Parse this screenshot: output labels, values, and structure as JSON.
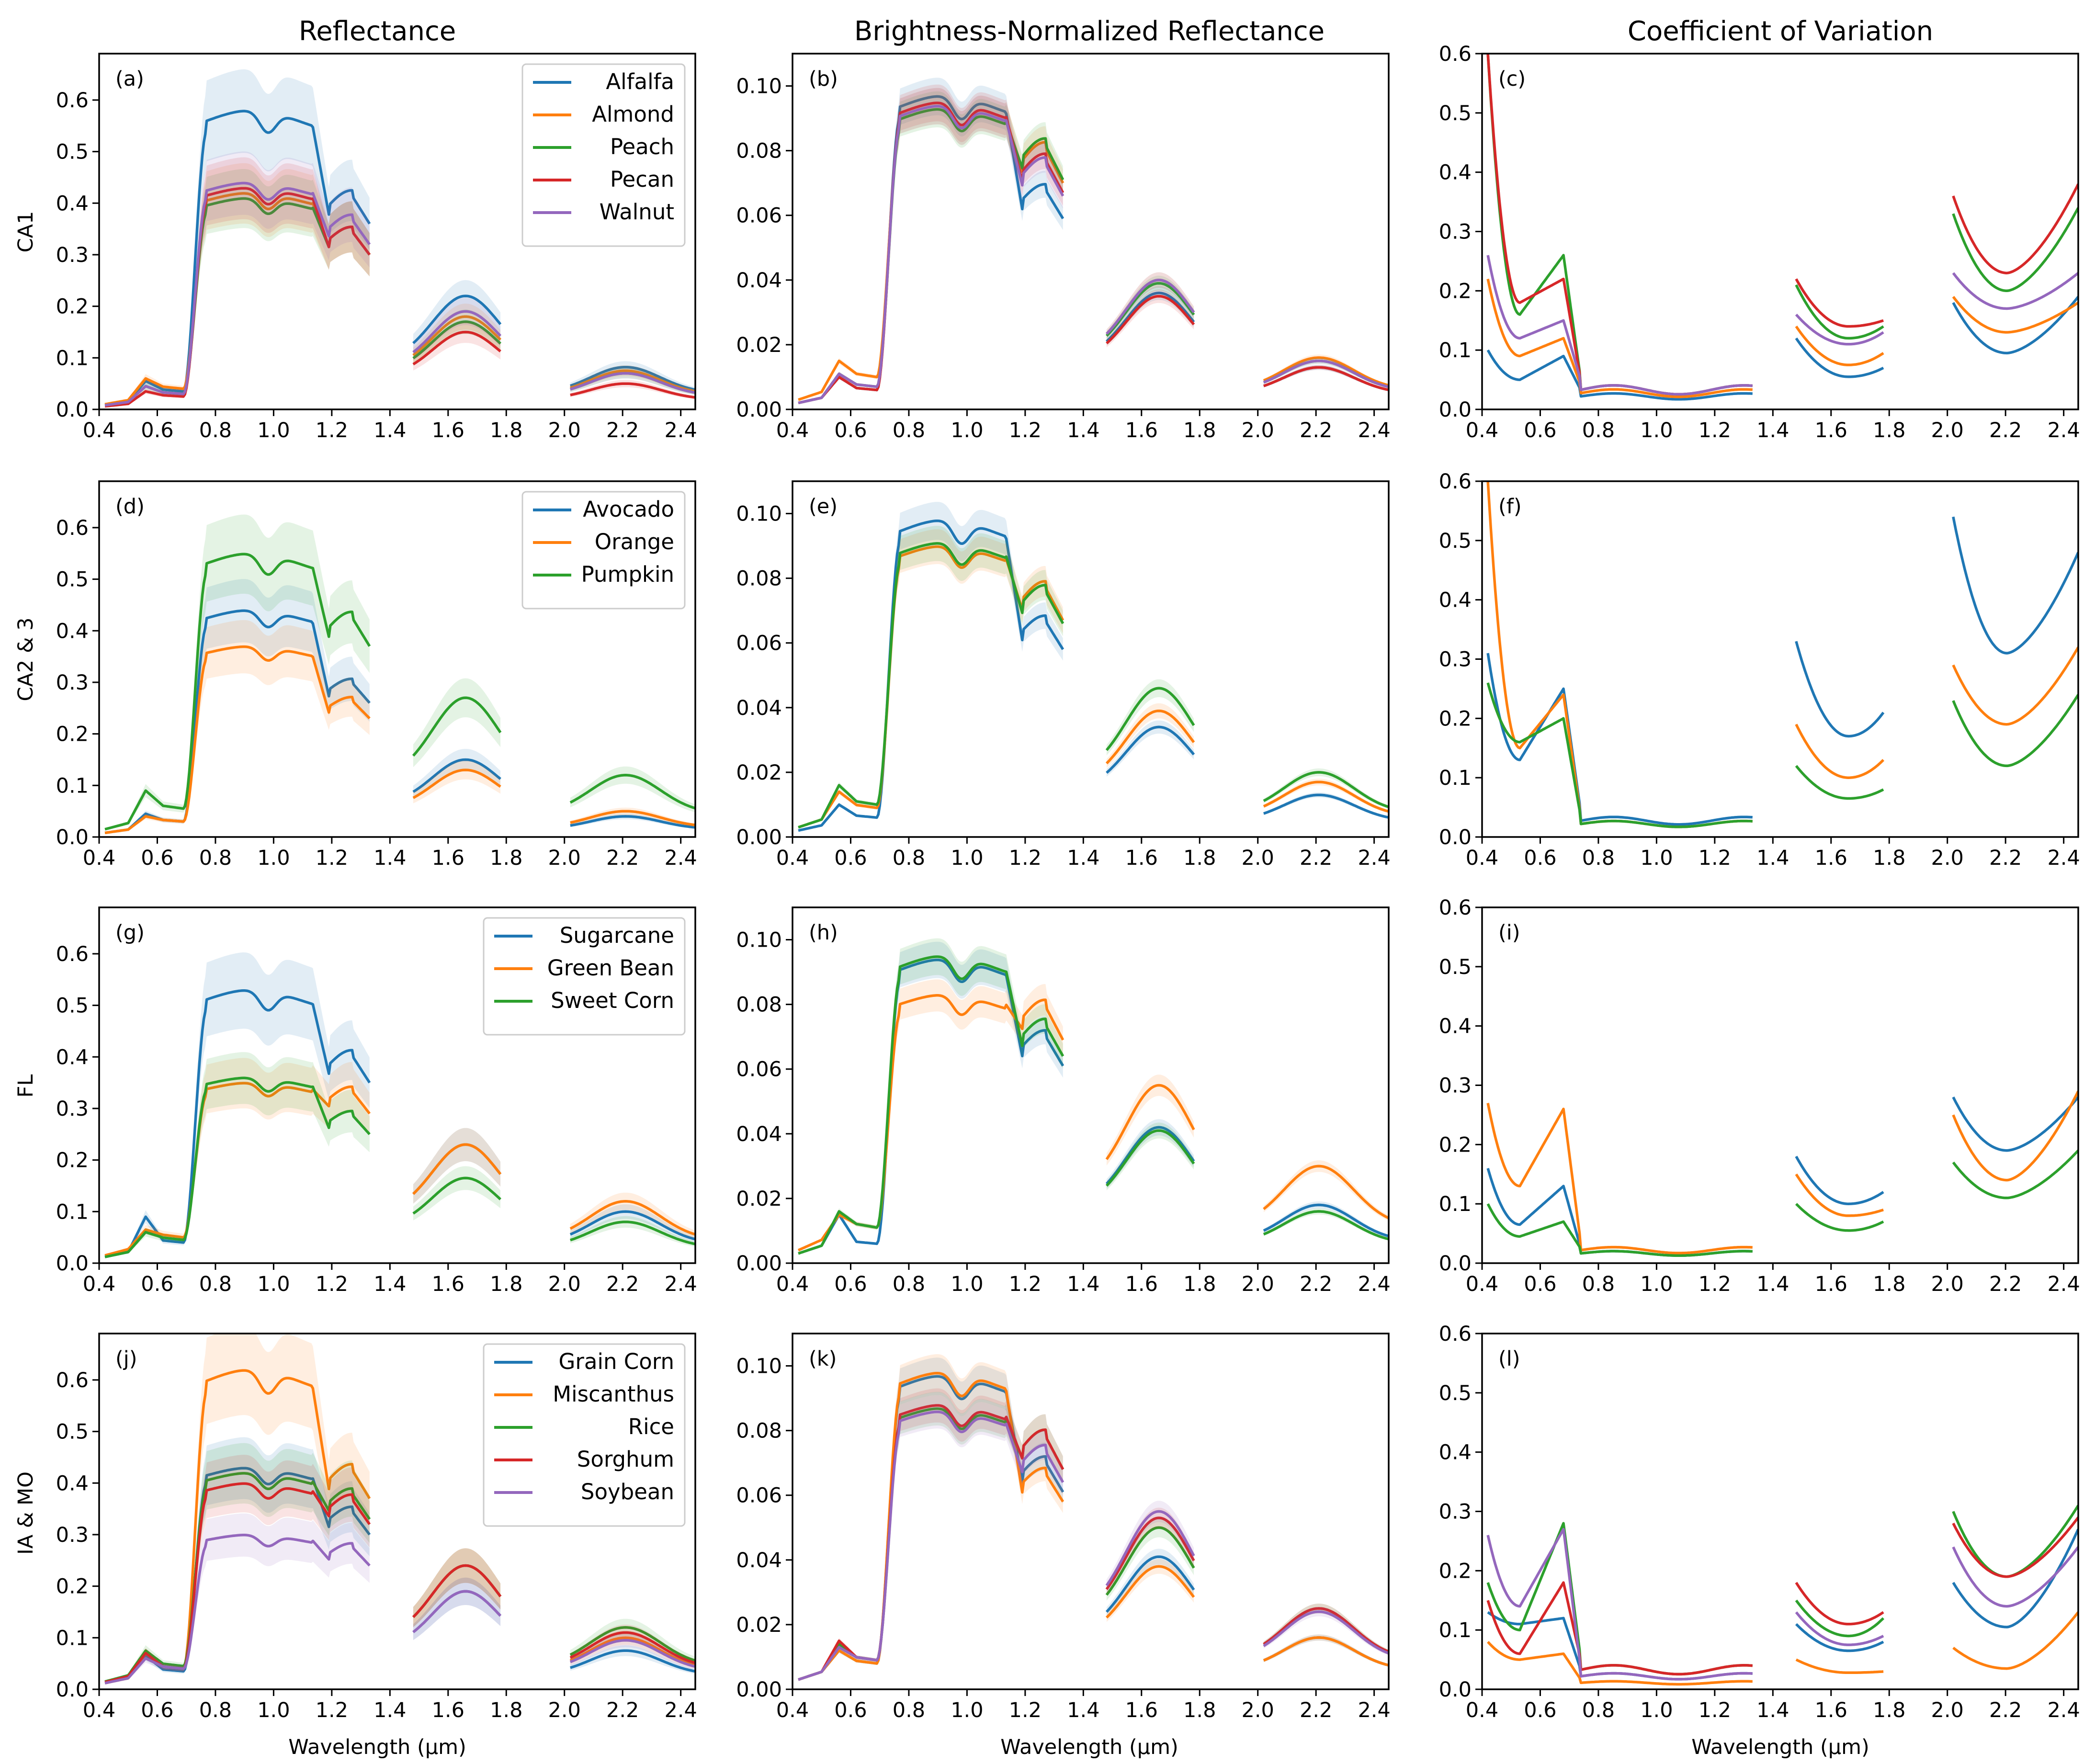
{
  "figure": {
    "column_titles": [
      "Reflectance",
      "Brightness-Normalized Reflectance",
      "Coefficient of Variation"
    ],
    "row_labels": [
      "CA1",
      "CA2 & 3",
      "FL",
      "IA & MO"
    ],
    "x_axis_label": "Wavelength (µm)"
  },
  "colors": {
    "C0": "#1f77b4",
    "C1": "#ff7f0e",
    "C2": "#2ca02c",
    "C3": "#d62728",
    "C4": "#9467bd"
  },
  "chart_data": [
    {
      "panel": "(a)",
      "type": "line",
      "ylim": [
        0,
        0.69
      ],
      "yticks": [
        0.0,
        0.1,
        0.2,
        0.3,
        0.4,
        0.5,
        0.6
      ],
      "xlim": [
        0.4,
        2.45
      ],
      "xticks": [
        0.4,
        0.6,
        0.8,
        1.0,
        1.2,
        1.4,
        1.6,
        1.8,
        2.0,
        2.2,
        2.4
      ],
      "legend": "top-right",
      "shaded_band": true,
      "series": [
        {
          "name": "Alfalfa",
          "visible": 0.009,
          "green": 0.055,
          "red": 0.035,
          "nir": 0.58,
          "nir_end": 0.36,
          "swir1": 0.22,
          "swir2": 0.082
        },
        {
          "name": "Almond",
          "visible": 0.01,
          "green": 0.06,
          "red": 0.04,
          "nir": 0.42,
          "nir_end": 0.3,
          "swir1": 0.18,
          "swir2": 0.075
        },
        {
          "name": "Peach",
          "visible": 0.008,
          "green": 0.045,
          "red": 0.03,
          "nir": 0.41,
          "nir_end": 0.3,
          "swir1": 0.17,
          "swir2": 0.07
        },
        {
          "name": "Pecan",
          "visible": 0.006,
          "green": 0.035,
          "red": 0.025,
          "nir": 0.43,
          "nir_end": 0.3,
          "swir1": 0.15,
          "swir2": 0.05
        },
        {
          "name": "Walnut",
          "visible": 0.008,
          "green": 0.045,
          "red": 0.03,
          "nir": 0.44,
          "nir_end": 0.32,
          "swir1": 0.19,
          "swir2": 0.07
        }
      ]
    },
    {
      "panel": "(b)",
      "type": "line",
      "ylim": [
        0,
        0.11
      ],
      "yticks": [
        0.0,
        0.02,
        0.04,
        0.06,
        0.08,
        0.1
      ],
      "xlim": [
        0.4,
        2.45
      ],
      "xticks": [
        0.4,
        0.6,
        0.8,
        1.0,
        1.2,
        1.4,
        1.6,
        1.8,
        2.0,
        2.2,
        2.4
      ],
      "shaded_band": true,
      "series": [
        {
          "name": "Alfalfa",
          "visible": 0.002,
          "green": 0.01,
          "red": 0.006,
          "nir": 0.097,
          "nir_end": 0.059,
          "swir1": 0.036,
          "swir2": 0.013
        },
        {
          "name": "Almond",
          "visible": 0.003,
          "green": 0.015,
          "red": 0.01,
          "nir": 0.094,
          "nir_end": 0.07,
          "swir1": 0.04,
          "swir2": 0.016
        },
        {
          "name": "Peach",
          "visible": 0.002,
          "green": 0.011,
          "red": 0.007,
          "nir": 0.093,
          "nir_end": 0.071,
          "swir1": 0.039,
          "swir2": 0.015
        },
        {
          "name": "Pecan",
          "visible": 0.002,
          "green": 0.01,
          "red": 0.006,
          "nir": 0.095,
          "nir_end": 0.067,
          "swir1": 0.035,
          "swir2": 0.013
        },
        {
          "name": "Walnut",
          "visible": 0.002,
          "green": 0.011,
          "red": 0.007,
          "nir": 0.094,
          "nir_end": 0.066,
          "swir1": 0.04,
          "swir2": 0.015
        }
      ]
    },
    {
      "panel": "(c)",
      "type": "line",
      "ylim": [
        0,
        0.6
      ],
      "yticks": [
        0.0,
        0.1,
        0.2,
        0.3,
        0.4,
        0.5,
        0.6
      ],
      "xlim": [
        0.4,
        2.45
      ],
      "xticks": [
        0.4,
        0.6,
        0.8,
        1.0,
        1.2,
        1.4,
        1.6,
        1.8,
        2.0,
        2.2,
        2.4
      ],
      "series": [
        {
          "name": "Alfalfa",
          "start": 0.1,
          "trough": 0.05,
          "red_peak": 0.09,
          "flat": 0.02,
          "s1": [
            0.12,
            0.055,
            0.07
          ],
          "s2": [
            0.18,
            0.095,
            0.19
          ]
        },
        {
          "name": "Almond",
          "start": 0.22,
          "trough": 0.09,
          "red_peak": 0.12,
          "flat": 0.025,
          "s1": [
            0.14,
            0.075,
            0.095
          ],
          "s2": [
            0.19,
            0.13,
            0.18
          ]
        },
        {
          "name": "Peach",
          "start": 0.6,
          "trough": 0.16,
          "red_peak": 0.26,
          "flat": 0.03,
          "s1": [
            0.21,
            0.12,
            0.14
          ],
          "s2": [
            0.33,
            0.2,
            0.34
          ]
        },
        {
          "name": "Pecan",
          "start": 0.6,
          "trough": 0.18,
          "red_peak": 0.22,
          "flat": 0.03,
          "s1": [
            0.22,
            0.14,
            0.15
          ],
          "s2": [
            0.36,
            0.23,
            0.38
          ]
        },
        {
          "name": "Walnut",
          "start": 0.26,
          "trough": 0.12,
          "red_peak": 0.15,
          "flat": 0.03,
          "s1": [
            0.16,
            0.11,
            0.13
          ],
          "s2": [
            0.23,
            0.17,
            0.23
          ]
        }
      ]
    },
    {
      "panel": "(d)",
      "type": "line",
      "ylim": [
        0,
        0.69
      ],
      "yticks": [
        0.0,
        0.1,
        0.2,
        0.3,
        0.4,
        0.5,
        0.6
      ],
      "xlim": [
        0.4,
        2.45
      ],
      "xticks": [
        0.4,
        0.6,
        0.8,
        1.0,
        1.2,
        1.4,
        1.6,
        1.8,
        2.0,
        2.2,
        2.4
      ],
      "legend": "top-right",
      "shaded_band": true,
      "series": [
        {
          "name": "Avocado",
          "visible": 0.008,
          "green": 0.045,
          "red": 0.03,
          "nir": 0.44,
          "nir_end": 0.26,
          "swir1": 0.15,
          "swir2": 0.04
        },
        {
          "name": "Orange",
          "visible": 0.008,
          "green": 0.04,
          "red": 0.03,
          "nir": 0.37,
          "nir_end": 0.23,
          "swir1": 0.13,
          "swir2": 0.05
        },
        {
          "name": "Pumpkin",
          "visible": 0.015,
          "green": 0.09,
          "red": 0.055,
          "nir": 0.55,
          "nir_end": 0.37,
          "swir1": 0.27,
          "swir2": 0.12
        }
      ]
    },
    {
      "panel": "(e)",
      "type": "line",
      "ylim": [
        0,
        0.11
      ],
      "yticks": [
        0.0,
        0.02,
        0.04,
        0.06,
        0.08,
        0.1
      ],
      "xlim": [
        0.4,
        2.45
      ],
      "xticks": [
        0.4,
        0.6,
        0.8,
        1.0,
        1.2,
        1.4,
        1.6,
        1.8,
        2.0,
        2.2,
        2.4
      ],
      "shaded_band": true,
      "series": [
        {
          "name": "Avocado",
          "visible": 0.002,
          "green": 0.01,
          "red": 0.006,
          "nir": 0.098,
          "nir_end": 0.058,
          "swir1": 0.034,
          "swir2": 0.013
        },
        {
          "name": "Orange",
          "visible": 0.003,
          "green": 0.014,
          "red": 0.009,
          "nir": 0.09,
          "nir_end": 0.067,
          "swir1": 0.039,
          "swir2": 0.017
        },
        {
          "name": "Pumpkin",
          "visible": 0.003,
          "green": 0.016,
          "red": 0.01,
          "nir": 0.091,
          "nir_end": 0.066,
          "swir1": 0.046,
          "swir2": 0.02
        }
      ]
    },
    {
      "panel": "(f)",
      "type": "line",
      "ylim": [
        0,
        0.6
      ],
      "yticks": [
        0.0,
        0.1,
        0.2,
        0.3,
        0.4,
        0.5,
        0.6
      ],
      "xlim": [
        0.4,
        2.45
      ],
      "xticks": [
        0.4,
        0.6,
        0.8,
        1.0,
        1.2,
        1.4,
        1.6,
        1.8,
        2.0,
        2.2,
        2.4
      ],
      "series": [
        {
          "name": "Avocado",
          "start": 0.31,
          "trough": 0.13,
          "red_peak": 0.25,
          "flat": 0.025,
          "s1": [
            0.33,
            0.17,
            0.21
          ],
          "s2": [
            0.54,
            0.31,
            0.48
          ]
        },
        {
          "name": "Orange",
          "start": 0.6,
          "trough": 0.15,
          "red_peak": 0.24,
          "flat": 0.02,
          "s1": [
            0.19,
            0.1,
            0.13
          ],
          "s2": [
            0.29,
            0.19,
            0.32
          ]
        },
        {
          "name": "Pumpkin",
          "start": 0.26,
          "trough": 0.16,
          "red_peak": 0.2,
          "flat": 0.02,
          "s1": [
            0.12,
            0.065,
            0.08
          ],
          "s2": [
            0.23,
            0.12,
            0.24
          ]
        }
      ]
    },
    {
      "panel": "(g)",
      "type": "line",
      "ylim": [
        0,
        0.69
      ],
      "yticks": [
        0.0,
        0.1,
        0.2,
        0.3,
        0.4,
        0.5,
        0.6
      ],
      "xlim": [
        0.4,
        2.45
      ],
      "xticks": [
        0.4,
        0.6,
        0.8,
        1.0,
        1.2,
        1.4,
        1.6,
        1.8,
        2.0,
        2.2,
        2.4
      ],
      "legend": "top-right",
      "shaded_band": true,
      "series": [
        {
          "name": "Sugarcane",
          "visible": 0.012,
          "green": 0.09,
          "red": 0.04,
          "nir": 0.53,
          "nir_end": 0.35,
          "swir1": 0.23,
          "swir2": 0.1
        },
        {
          "name": "Green Bean",
          "visible": 0.015,
          "green": 0.065,
          "red": 0.05,
          "nir": 0.35,
          "nir_end": 0.29,
          "swir1": 0.23,
          "swir2": 0.12
        },
        {
          "name": "Sweet Corn",
          "visible": 0.012,
          "green": 0.06,
          "red": 0.045,
          "nir": 0.36,
          "nir_end": 0.25,
          "swir1": 0.165,
          "swir2": 0.08
        }
      ]
    },
    {
      "panel": "(h)",
      "type": "line",
      "ylim": [
        0,
        0.11
      ],
      "yticks": [
        0.0,
        0.02,
        0.04,
        0.06,
        0.08,
        0.1
      ],
      "xlim": [
        0.4,
        2.45
      ],
      "xticks": [
        0.4,
        0.6,
        0.8,
        1.0,
        1.2,
        1.4,
        1.6,
        1.8,
        2.0,
        2.2,
        2.4
      ],
      "shaded_band": true,
      "series": [
        {
          "name": "Sugarcane",
          "visible": 0.003,
          "green": 0.015,
          "red": 0.006,
          "nir": 0.094,
          "nir_end": 0.061,
          "swir1": 0.042,
          "swir2": 0.018
        },
        {
          "name": "Green Bean",
          "visible": 0.004,
          "green": 0.015,
          "red": 0.011,
          "nir": 0.083,
          "nir_end": 0.069,
          "swir1": 0.055,
          "swir2": 0.03
        },
        {
          "name": "Sweet Corn",
          "visible": 0.003,
          "green": 0.016,
          "red": 0.011,
          "nir": 0.095,
          "nir_end": 0.064,
          "swir1": 0.041,
          "swir2": 0.016
        }
      ]
    },
    {
      "panel": "(i)",
      "type": "line",
      "ylim": [
        0,
        0.6
      ],
      "yticks": [
        0.0,
        0.1,
        0.2,
        0.3,
        0.4,
        0.5,
        0.6
      ],
      "xlim": [
        0.4,
        2.45
      ],
      "xticks": [
        0.4,
        0.6,
        0.8,
        1.0,
        1.2,
        1.4,
        1.6,
        1.8,
        2.0,
        2.2,
        2.4
      ],
      "series": [
        {
          "name": "Sugarcane",
          "start": 0.16,
          "trough": 0.065,
          "red_peak": 0.13,
          "flat": 0.015,
          "s1": [
            0.18,
            0.1,
            0.12
          ],
          "s2": [
            0.28,
            0.19,
            0.28
          ]
        },
        {
          "name": "Green Bean",
          "start": 0.27,
          "trough": 0.13,
          "red_peak": 0.26,
          "flat": 0.02,
          "s1": [
            0.15,
            0.08,
            0.09
          ],
          "s2": [
            0.25,
            0.14,
            0.29
          ]
        },
        {
          "name": "Sweet Corn",
          "start": 0.1,
          "trough": 0.045,
          "red_peak": 0.07,
          "flat": 0.015,
          "s1": [
            0.1,
            0.055,
            0.07
          ],
          "s2": [
            0.17,
            0.11,
            0.19
          ]
        }
      ]
    },
    {
      "panel": "(j)",
      "type": "line",
      "ylim": [
        0,
        0.69
      ],
      "yticks": [
        0.0,
        0.1,
        0.2,
        0.3,
        0.4,
        0.5,
        0.6
      ],
      "xlim": [
        0.4,
        2.45
      ],
      "xticks": [
        0.4,
        0.6,
        0.8,
        1.0,
        1.2,
        1.4,
        1.6,
        1.8,
        2.0,
        2.2,
        2.4
      ],
      "legend": "top-right",
      "shaded_band": true,
      "series": [
        {
          "name": "Grain Corn",
          "visible": 0.012,
          "green": 0.065,
          "red": 0.035,
          "nir": 0.43,
          "nir_end": 0.3,
          "swir1": 0.19,
          "swir2": 0.075
        },
        {
          "name": "Miscanthus",
          "visible": 0.012,
          "green": 0.07,
          "red": 0.04,
          "nir": 0.62,
          "nir_end": 0.37,
          "swir1": 0.24,
          "swir2": 0.1
        },
        {
          "name": "Rice",
          "visible": 0.015,
          "green": 0.075,
          "red": 0.045,
          "nir": 0.42,
          "nir_end": 0.33,
          "swir1": 0.24,
          "swir2": 0.12
        },
        {
          "name": "Sorghum",
          "visible": 0.014,
          "green": 0.07,
          "red": 0.04,
          "nir": 0.4,
          "nir_end": 0.32,
          "swir1": 0.24,
          "swir2": 0.11
        },
        {
          "name": "Soybean",
          "visible": 0.012,
          "green": 0.06,
          "red": 0.04,
          "nir": 0.3,
          "nir_end": 0.24,
          "swir1": 0.19,
          "swir2": 0.095
        }
      ]
    },
    {
      "panel": "(k)",
      "type": "line",
      "ylim": [
        0,
        0.11
      ],
      "yticks": [
        0.0,
        0.02,
        0.04,
        0.06,
        0.08,
        0.1
      ],
      "xlim": [
        0.4,
        2.45
      ],
      "xticks": [
        0.4,
        0.6,
        0.8,
        1.0,
        1.2,
        1.4,
        1.6,
        1.8,
        2.0,
        2.2,
        2.4
      ],
      "shaded_band": true,
      "series": [
        {
          "name": "Grain Corn",
          "visible": 0.003,
          "green": 0.012,
          "red": 0.008,
          "nir": 0.097,
          "nir_end": 0.061,
          "swir1": 0.041,
          "swir2": 0.016
        },
        {
          "name": "Miscanthus",
          "visible": 0.003,
          "green": 0.012,
          "red": 0.008,
          "nir": 0.098,
          "nir_end": 0.058,
          "swir1": 0.038,
          "swir2": 0.016
        },
        {
          "name": "Rice",
          "visible": 0.003,
          "green": 0.014,
          "red": 0.009,
          "nir": 0.087,
          "nir_end": 0.068,
          "swir1": 0.05,
          "swir2": 0.025
        },
        {
          "name": "Sorghum",
          "visible": 0.003,
          "green": 0.015,
          "red": 0.009,
          "nir": 0.088,
          "nir_end": 0.068,
          "swir1": 0.053,
          "swir2": 0.025
        },
        {
          "name": "Soybean",
          "visible": 0.003,
          "green": 0.013,
          "red": 0.009,
          "nir": 0.086,
          "nir_end": 0.064,
          "swir1": 0.055,
          "swir2": 0.024
        }
      ]
    },
    {
      "panel": "(l)",
      "type": "line",
      "ylim": [
        0,
        0.6
      ],
      "yticks": [
        0.0,
        0.1,
        0.2,
        0.3,
        0.4,
        0.5,
        0.6
      ],
      "xlim": [
        0.4,
        2.45
      ],
      "xticks": [
        0.4,
        0.6,
        0.8,
        1.0,
        1.2,
        1.4,
        1.6,
        1.8,
        2.0,
        2.2,
        2.4
      ],
      "series": [
        {
          "name": "Grain Corn",
          "start": 0.13,
          "trough": 0.11,
          "red_peak": 0.12,
          "flat": 0.02,
          "s1": [
            0.11,
            0.065,
            0.08
          ],
          "s2": [
            0.18,
            0.105,
            0.27
          ]
        },
        {
          "name": "Miscanthus",
          "start": 0.08,
          "trough": 0.05,
          "red_peak": 0.06,
          "flat": 0.01,
          "s1": [
            0.05,
            0.028,
            0.03
          ],
          "s2": [
            0.07,
            0.035,
            0.13
          ]
        },
        {
          "name": "Rice",
          "start": 0.18,
          "trough": 0.1,
          "red_peak": 0.28,
          "flat": 0.03,
          "s1": [
            0.15,
            0.09,
            0.12
          ],
          "s2": [
            0.3,
            0.19,
            0.31
          ]
        },
        {
          "name": "Sorghum",
          "start": 0.15,
          "trough": 0.06,
          "red_peak": 0.18,
          "flat": 0.03,
          "s1": [
            0.18,
            0.11,
            0.13
          ],
          "s2": [
            0.28,
            0.19,
            0.29
          ]
        },
        {
          "name": "Soybean",
          "start": 0.26,
          "trough": 0.14,
          "red_peak": 0.27,
          "flat": 0.02,
          "s1": [
            0.13,
            0.075,
            0.09
          ],
          "s2": [
            0.24,
            0.14,
            0.24
          ]
        }
      ]
    }
  ]
}
